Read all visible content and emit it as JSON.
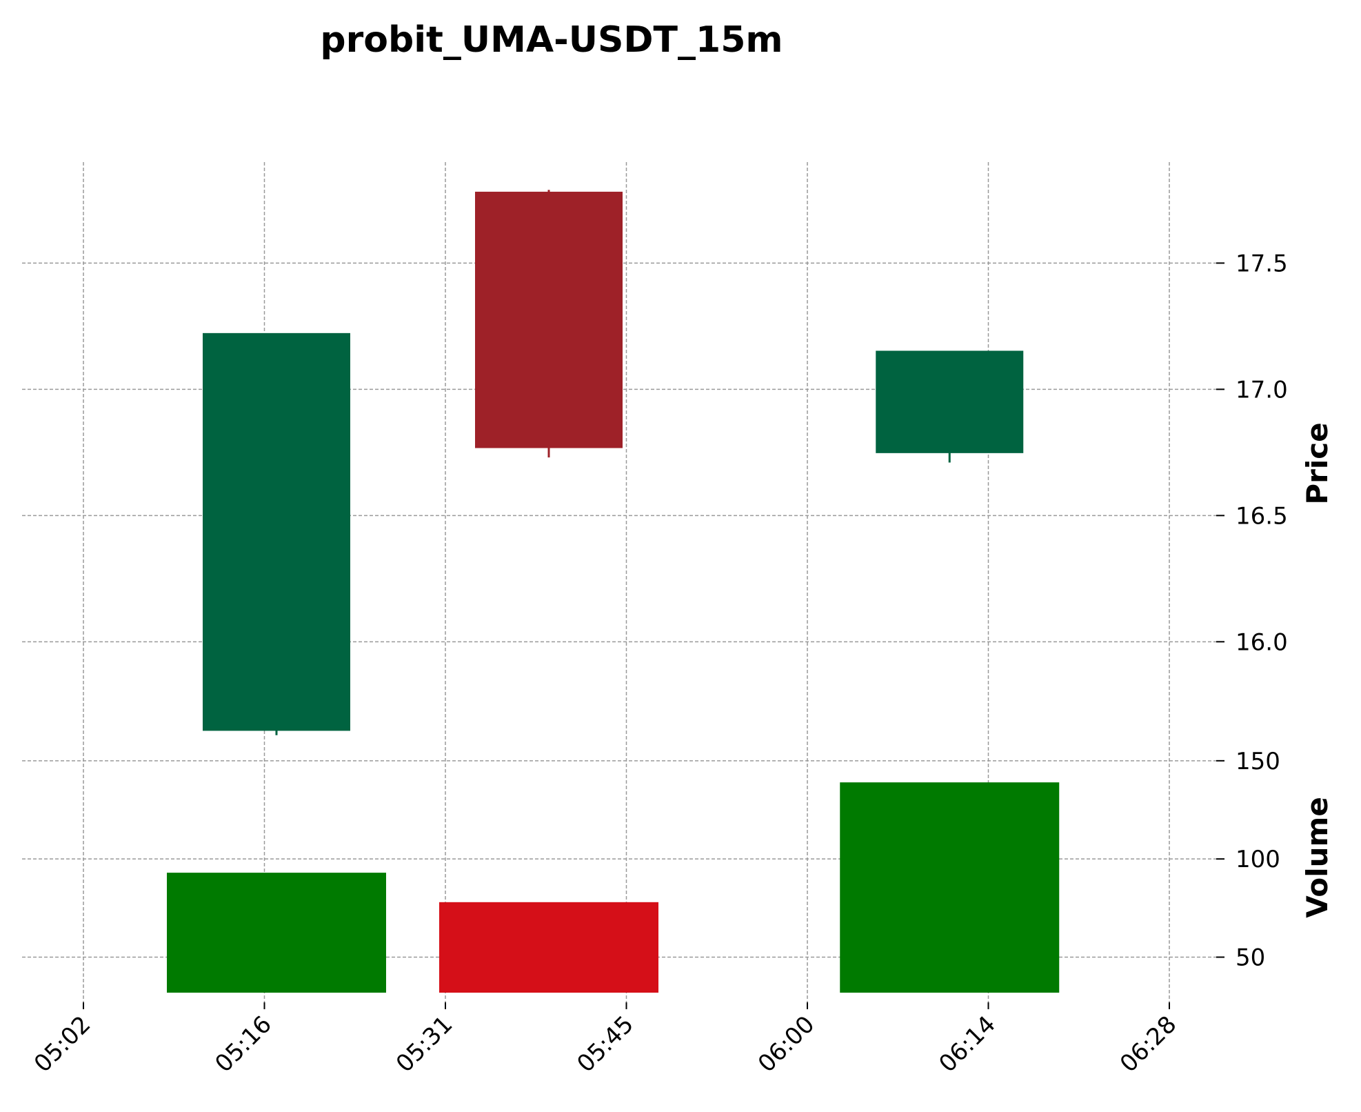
{
  "chart_data": {
    "type": "candlestick",
    "title": "probit_UMA-USDT_15m",
    "x_ticks": [
      "05:02",
      "05:16",
      "05:31",
      "05:45",
      "06:00",
      "06:14",
      "06:28"
    ],
    "price_panel": {
      "ylabel": "Price",
      "ylim": [
        15.55,
        17.9
      ],
      "yticks": [
        16.0,
        16.5,
        17.0,
        17.5
      ],
      "ytick_labels": [
        "16.0",
        "16.5",
        "17.0",
        "17.5"
      ],
      "grid": true,
      "axis_side": "right"
    },
    "volume_panel": {
      "ylabel": "Volume",
      "ylim": [
        27,
        151
      ],
      "yticks": [
        50,
        100,
        150
      ],
      "ytick_labels": [
        "50",
        "100",
        "150"
      ],
      "grid": true,
      "axis_side": "right"
    },
    "candles": [
      {
        "time": "05:17",
        "open": 15.65,
        "high": 17.22,
        "low": 15.63,
        "close": 17.22,
        "volume": 93
      },
      {
        "time": "05:39",
        "open": 17.78,
        "high": 17.79,
        "low": 16.73,
        "close": 16.77,
        "volume": 78
      },
      {
        "time": "06:11",
        "open": 16.75,
        "high": 17.15,
        "low": 16.71,
        "close": 17.15,
        "volume": 139
      }
    ],
    "colors": {
      "candle_up": "#006340",
      "candle_down": "#9e2128",
      "volume_up": "#007a00",
      "volume_down": "#d50f18",
      "grid": "#999999"
    }
  }
}
